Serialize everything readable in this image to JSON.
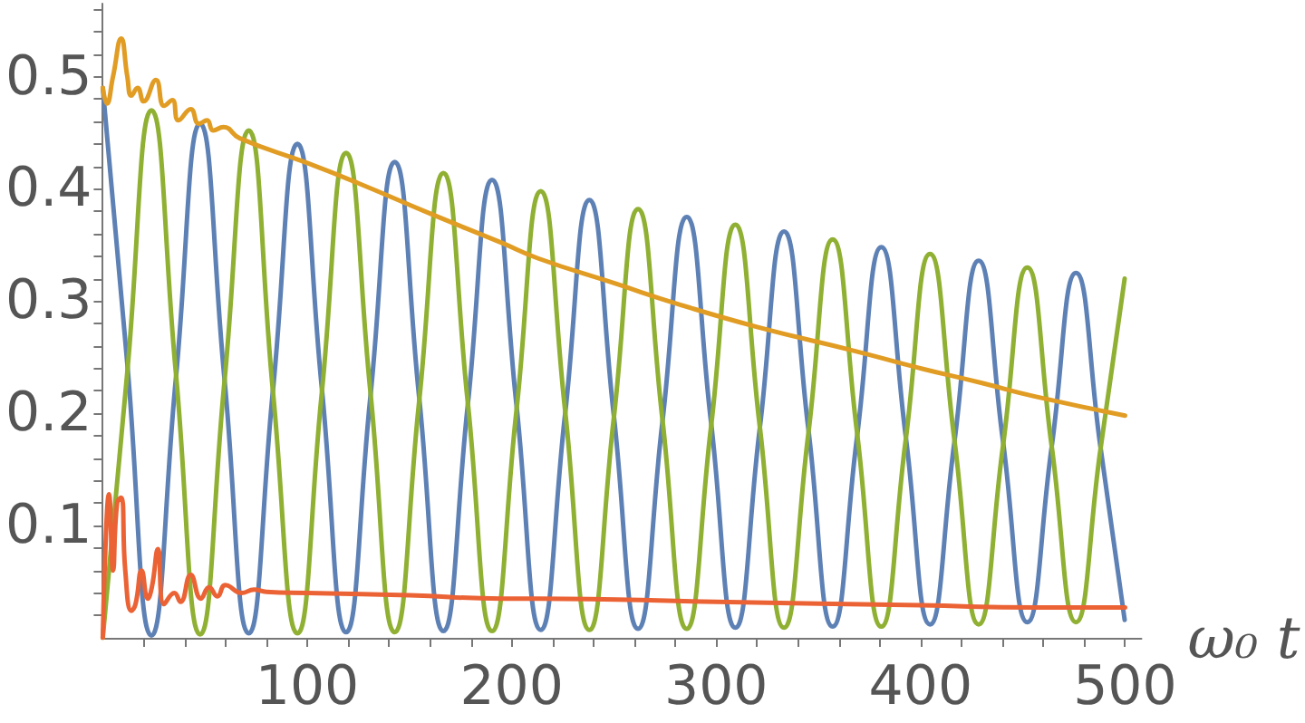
{
  "chart_data": {
    "type": "line",
    "xlabel": "ω₀ t",
    "xlim": [
      0,
      508
    ],
    "ylim": [
      0,
      0.565
    ],
    "xticks": [
      {
        "value": 20,
        "label": null
      },
      {
        "value": 40,
        "label": null
      },
      {
        "value": 60,
        "label": null
      },
      {
        "value": 80,
        "label": null
      },
      100,
      {
        "value": 120,
        "label": null
      },
      {
        "value": 140,
        "label": null
      },
      {
        "value": 160,
        "label": null
      },
      {
        "value": 180,
        "label": null
      },
      200,
      {
        "value": 220,
        "label": null
      },
      {
        "value": 240,
        "label": null
      },
      {
        "value": 260,
        "label": null
      },
      {
        "value": 280,
        "label": null
      },
      300,
      {
        "value": 320,
        "label": null
      },
      {
        "value": 340,
        "label": null
      },
      {
        "value": 360,
        "label": null
      },
      {
        "value": 380,
        "label": null
      },
      400,
      {
        "value": 420,
        "label": null
      },
      {
        "value": 440,
        "label": null
      },
      {
        "value": 460,
        "label": null
      },
      {
        "value": 480,
        "label": null
      },
      500
    ],
    "yticks": [
      {
        "value": 0.02,
        "label": null
      },
      {
        "value": 0.04,
        "label": null
      },
      {
        "value": 0.06,
        "label": null
      },
      {
        "value": 0.08,
        "label": null
      },
      0.1,
      {
        "value": 0.12,
        "label": null
      },
      {
        "value": 0.14,
        "label": null
      },
      {
        "value": 0.16,
        "label": null
      },
      {
        "value": 0.18,
        "label": null
      },
      0.2,
      {
        "value": 0.22,
        "label": null
      },
      {
        "value": 0.24,
        "label": null
      },
      {
        "value": 0.26,
        "label": null
      },
      {
        "value": 0.28,
        "label": null
      },
      0.3,
      {
        "value": 0.32,
        "label": null
      },
      {
        "value": 0.34,
        "label": null
      },
      {
        "value": 0.36,
        "label": null
      },
      {
        "value": 0.38,
        "label": null
      },
      0.4,
      {
        "value": 0.42,
        "label": null
      },
      {
        "value": 0.44,
        "label": null
      },
      {
        "value": 0.46,
        "label": null
      },
      {
        "value": 0.48,
        "label": null
      },
      0.5,
      {
        "value": 0.52,
        "label": null
      },
      {
        "value": 0.54,
        "label": null
      },
      {
        "value": 0.56,
        "label": null
      }
    ],
    "grid": false,
    "series": [
      {
        "color": "#5e81b5",
        "x": [
          0,
          11.9,
          23.8,
          35.7,
          47.6,
          59.5,
          71.4,
          83.3,
          95.2,
          107.1,
          119,
          130.9,
          142.8,
          154.7,
          166.6,
          178.5,
          190.4,
          202.3,
          214.2,
          226.1,
          238,
          249.9,
          261.8,
          273.7,
          285.6,
          297.5,
          309.4,
          321.3,
          333.2,
          345.1,
          357,
          368.9,
          380.8,
          392.7,
          404.6,
          416.5,
          428.4,
          440.3,
          452.2,
          464.1,
          476,
          487.9,
          499.8
        ],
        "values": [
          0.49,
          0.246,
          0.002,
          0.23,
          0.458,
          0.231,
          0.004,
          0.222,
          0.44,
          0.223,
          0.005,
          0.215,
          0.424,
          0.215,
          0.006,
          0.207,
          0.408,
          0.208,
          0.007,
          0.199,
          0.39,
          0.199,
          0.008,
          0.192,
          0.375,
          0.192,
          0.009,
          0.186,
          0.362,
          0.186,
          0.01,
          0.179,
          0.348,
          0.18,
          0.012,
          0.174,
          0.336,
          0.175,
          0.014,
          0.17,
          0.325,
          0.171,
          0.016
        ]
      },
      {
        "color": "#8fb032",
        "x": [
          0,
          11.9,
          23.8,
          35.7,
          47.6,
          59.5,
          71.4,
          83.3,
          95.2,
          107.1,
          119,
          130.9,
          142.8,
          154.7,
          166.6,
          178.5,
          190.4,
          202.3,
          214.2,
          226.1,
          238,
          249.9,
          261.8,
          273.7,
          285.6,
          297.5,
          309.4,
          321.3,
          333.2,
          345.1,
          357,
          368.9,
          380.8,
          392.7,
          404.6,
          416.5,
          428.4,
          440.3,
          452.2,
          464.1,
          476,
          487.9,
          499.8
        ],
        "values": [
          0,
          0.235,
          0.47,
          0.237,
          0.003,
          0.228,
          0.452,
          0.218,
          0.004,
          0.218,
          0.432,
          0.219,
          0.005,
          0.21,
          0.414,
          0.21,
          0.006,
          0.202,
          0.398,
          0.203,
          0.007,
          0.195,
          0.382,
          0.195,
          0.008,
          0.188,
          0.368,
          0.189,
          0.009,
          0.182,
          0.355,
          0.183,
          0.01,
          0.176,
          0.342,
          0.177,
          0.012,
          0.171,
          0.33,
          0.171,
          0.014,
          0.167,
          0.32
        ]
      },
      {
        "color": "#e19c24",
        "x": [
          0,
          2,
          5,
          9,
          12,
          14,
          17,
          20,
          26,
          30,
          34,
          37,
          43,
          47,
          51,
          54,
          59,
          67,
          100,
          125,
          160,
          195,
          213,
          250,
          282,
          320,
          369,
          398,
          430,
          456,
          500
        ],
        "values": [
          0.49,
          0.476,
          0.5,
          0.534,
          0.5,
          0.483,
          0.49,
          0.478,
          0.497,
          0.474,
          0.479,
          0.461,
          0.471,
          0.458,
          0.461,
          0.452,
          0.455,
          0.445,
          0.423,
          0.405,
          0.378,
          0.352,
          0.338,
          0.316,
          0.297,
          0.277,
          0.255,
          0.241,
          0.227,
          0.215,
          0.198
        ]
      },
      {
        "color": "#eb6235",
        "x": [
          0,
          1.5,
          3,
          5,
          7,
          9,
          11,
          14,
          16,
          19,
          22,
          24,
          27,
          30,
          35,
          38,
          43,
          48,
          52,
          56,
          60,
          68,
          74,
          80,
          100,
          150,
          195,
          213,
          300,
          400,
          456,
          500
        ],
        "values": [
          0,
          0.09,
          0.128,
          0.06,
          0.12,
          0.125,
          0.06,
          0.024,
          0.03,
          0.06,
          0.035,
          0.045,
          0.079,
          0.03,
          0.04,
          0.032,
          0.056,
          0.035,
          0.045,
          0.037,
          0.047,
          0.04,
          0.043,
          0.041,
          0.04,
          0.038,
          0.035,
          0.035,
          0.032,
          0.029,
          0.027,
          0.027
        ]
      }
    ]
  }
}
